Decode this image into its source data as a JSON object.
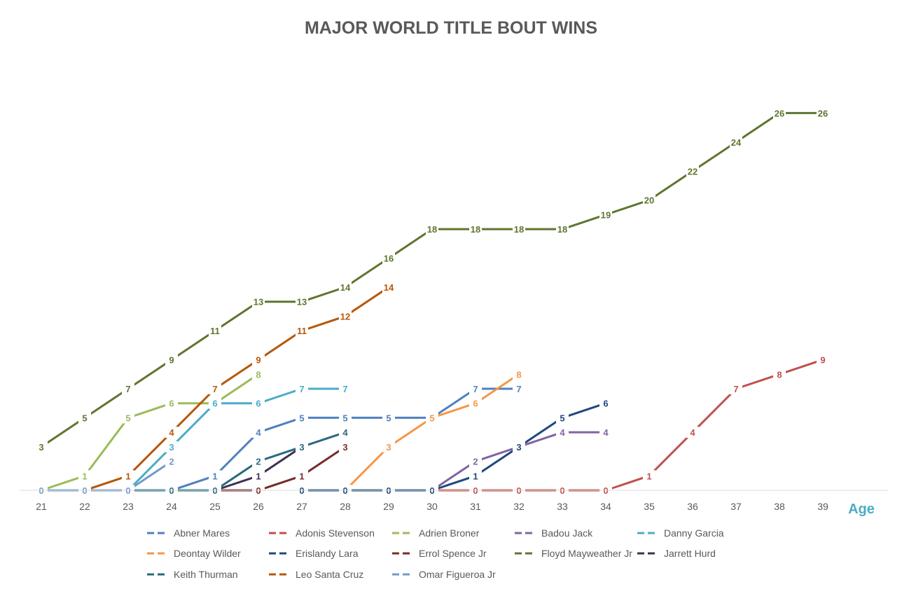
{
  "chart_data": {
    "type": "line",
    "title": "MAJOR WORLD TITLE BOUT WINS",
    "xlabel": "Age",
    "ylabel": "",
    "x": [
      21,
      22,
      23,
      24,
      25,
      26,
      27,
      28,
      29,
      30,
      31,
      32,
      33,
      34,
      35,
      36,
      37,
      38,
      39
    ],
    "ylim": [
      0,
      28
    ],
    "grid": false,
    "legend_position": "bottom",
    "data_labels": true,
    "series": [
      {
        "name": "Abner Mares",
        "color": "#4f81bd",
        "points": [
          [
            21,
            0
          ],
          [
            22,
            0
          ],
          [
            23,
            0
          ],
          [
            24,
            0
          ],
          [
            25,
            1
          ],
          [
            26,
            4
          ],
          [
            27,
            5
          ],
          [
            28,
            5
          ],
          [
            29,
            5
          ],
          [
            30,
            5
          ],
          [
            31,
            7
          ],
          [
            32,
            7
          ]
        ]
      },
      {
        "name": "Adonis Stevenson",
        "color": "#c0504d",
        "points": [
          [
            30,
            0
          ],
          [
            31,
            0
          ],
          [
            32,
            0
          ],
          [
            33,
            0
          ],
          [
            34,
            0
          ],
          [
            35,
            1
          ],
          [
            36,
            4
          ],
          [
            37,
            7
          ],
          [
            38,
            8
          ],
          [
            39,
            9
          ]
        ]
      },
      {
        "name": "Adrien Broner",
        "color": "#9bbb59",
        "points": [
          [
            21,
            0
          ],
          [
            22,
            1
          ],
          [
            23,
            5
          ],
          [
            24,
            6
          ],
          [
            25,
            6
          ],
          [
            26,
            8
          ]
        ]
      },
      {
        "name": "Badou Jack",
        "color": "#8064a2",
        "points": [
          [
            30,
            0
          ],
          [
            31,
            2
          ],
          [
            32,
            3
          ],
          [
            33,
            4
          ],
          [
            34,
            4
          ]
        ]
      },
      {
        "name": "Danny Garcia",
        "color": "#4bacc6",
        "points": [
          [
            21,
            0
          ],
          [
            22,
            0
          ],
          [
            23,
            0
          ],
          [
            24,
            3
          ],
          [
            25,
            6
          ],
          [
            26,
            6
          ],
          [
            27,
            7
          ],
          [
            28,
            7
          ]
        ]
      },
      {
        "name": "Deontay Wilder",
        "color": "#f79646",
        "points": [
          [
            28,
            0
          ],
          [
            29,
            3
          ],
          [
            30,
            5
          ],
          [
            31,
            6
          ],
          [
            32,
            8
          ]
        ]
      },
      {
        "name": "Erislandy Lara",
        "color": "#1f497d",
        "points": [
          [
            27,
            0
          ],
          [
            28,
            0
          ],
          [
            29,
            0
          ],
          [
            30,
            0
          ],
          [
            31,
            1
          ],
          [
            32,
            3
          ],
          [
            33,
            5
          ],
          [
            34,
            6
          ]
        ]
      },
      {
        "name": "Errol Spence Jr",
        "color": "#772c2a",
        "points": [
          [
            25,
            0
          ],
          [
            26,
            0
          ],
          [
            27,
            1
          ],
          [
            28,
            3
          ]
        ]
      },
      {
        "name": "Floyd Mayweather Jr",
        "color": "#5f7530",
        "points": [
          [
            21,
            3
          ],
          [
            22,
            5
          ],
          [
            23,
            7
          ],
          [
            24,
            9
          ],
          [
            25,
            11
          ],
          [
            26,
            13
          ],
          [
            27,
            13
          ],
          [
            28,
            14
          ],
          [
            29,
            16
          ],
          [
            30,
            18
          ],
          [
            31,
            18
          ],
          [
            32,
            18
          ],
          [
            33,
            18
          ],
          [
            34,
            19
          ],
          [
            35,
            20
          ],
          [
            36,
            22
          ],
          [
            37,
            24
          ],
          [
            38,
            26
          ],
          [
            39,
            26
          ]
        ]
      },
      {
        "name": "Jarrett Hurd",
        "color": "#3f3151",
        "points": [
          [
            25,
            0
          ],
          [
            26,
            1
          ],
          [
            27,
            3
          ]
        ]
      },
      {
        "name": "Keith Thurman",
        "color": "#276a7c",
        "points": [
          [
            21,
            0
          ],
          [
            22,
            0
          ],
          [
            23,
            0
          ],
          [
            24,
            0
          ],
          [
            25,
            0
          ],
          [
            26,
            2
          ],
          [
            27,
            3
          ],
          [
            28,
            4
          ]
        ]
      },
      {
        "name": "Leo Santa Cruz",
        "color": "#b65708",
        "points": [
          [
            22,
            0
          ],
          [
            23,
            1
          ],
          [
            24,
            4
          ],
          [
            25,
            7
          ],
          [
            26,
            9
          ],
          [
            27,
            11
          ],
          [
            28,
            12
          ],
          [
            29,
            14
          ]
        ]
      },
      {
        "name": "Omar Figueroa Jr",
        "color": "#729aca",
        "points": [
          [
            21,
            0
          ],
          [
            22,
            0
          ],
          [
            23,
            0
          ],
          [
            24,
            2
          ]
        ]
      }
    ]
  }
}
